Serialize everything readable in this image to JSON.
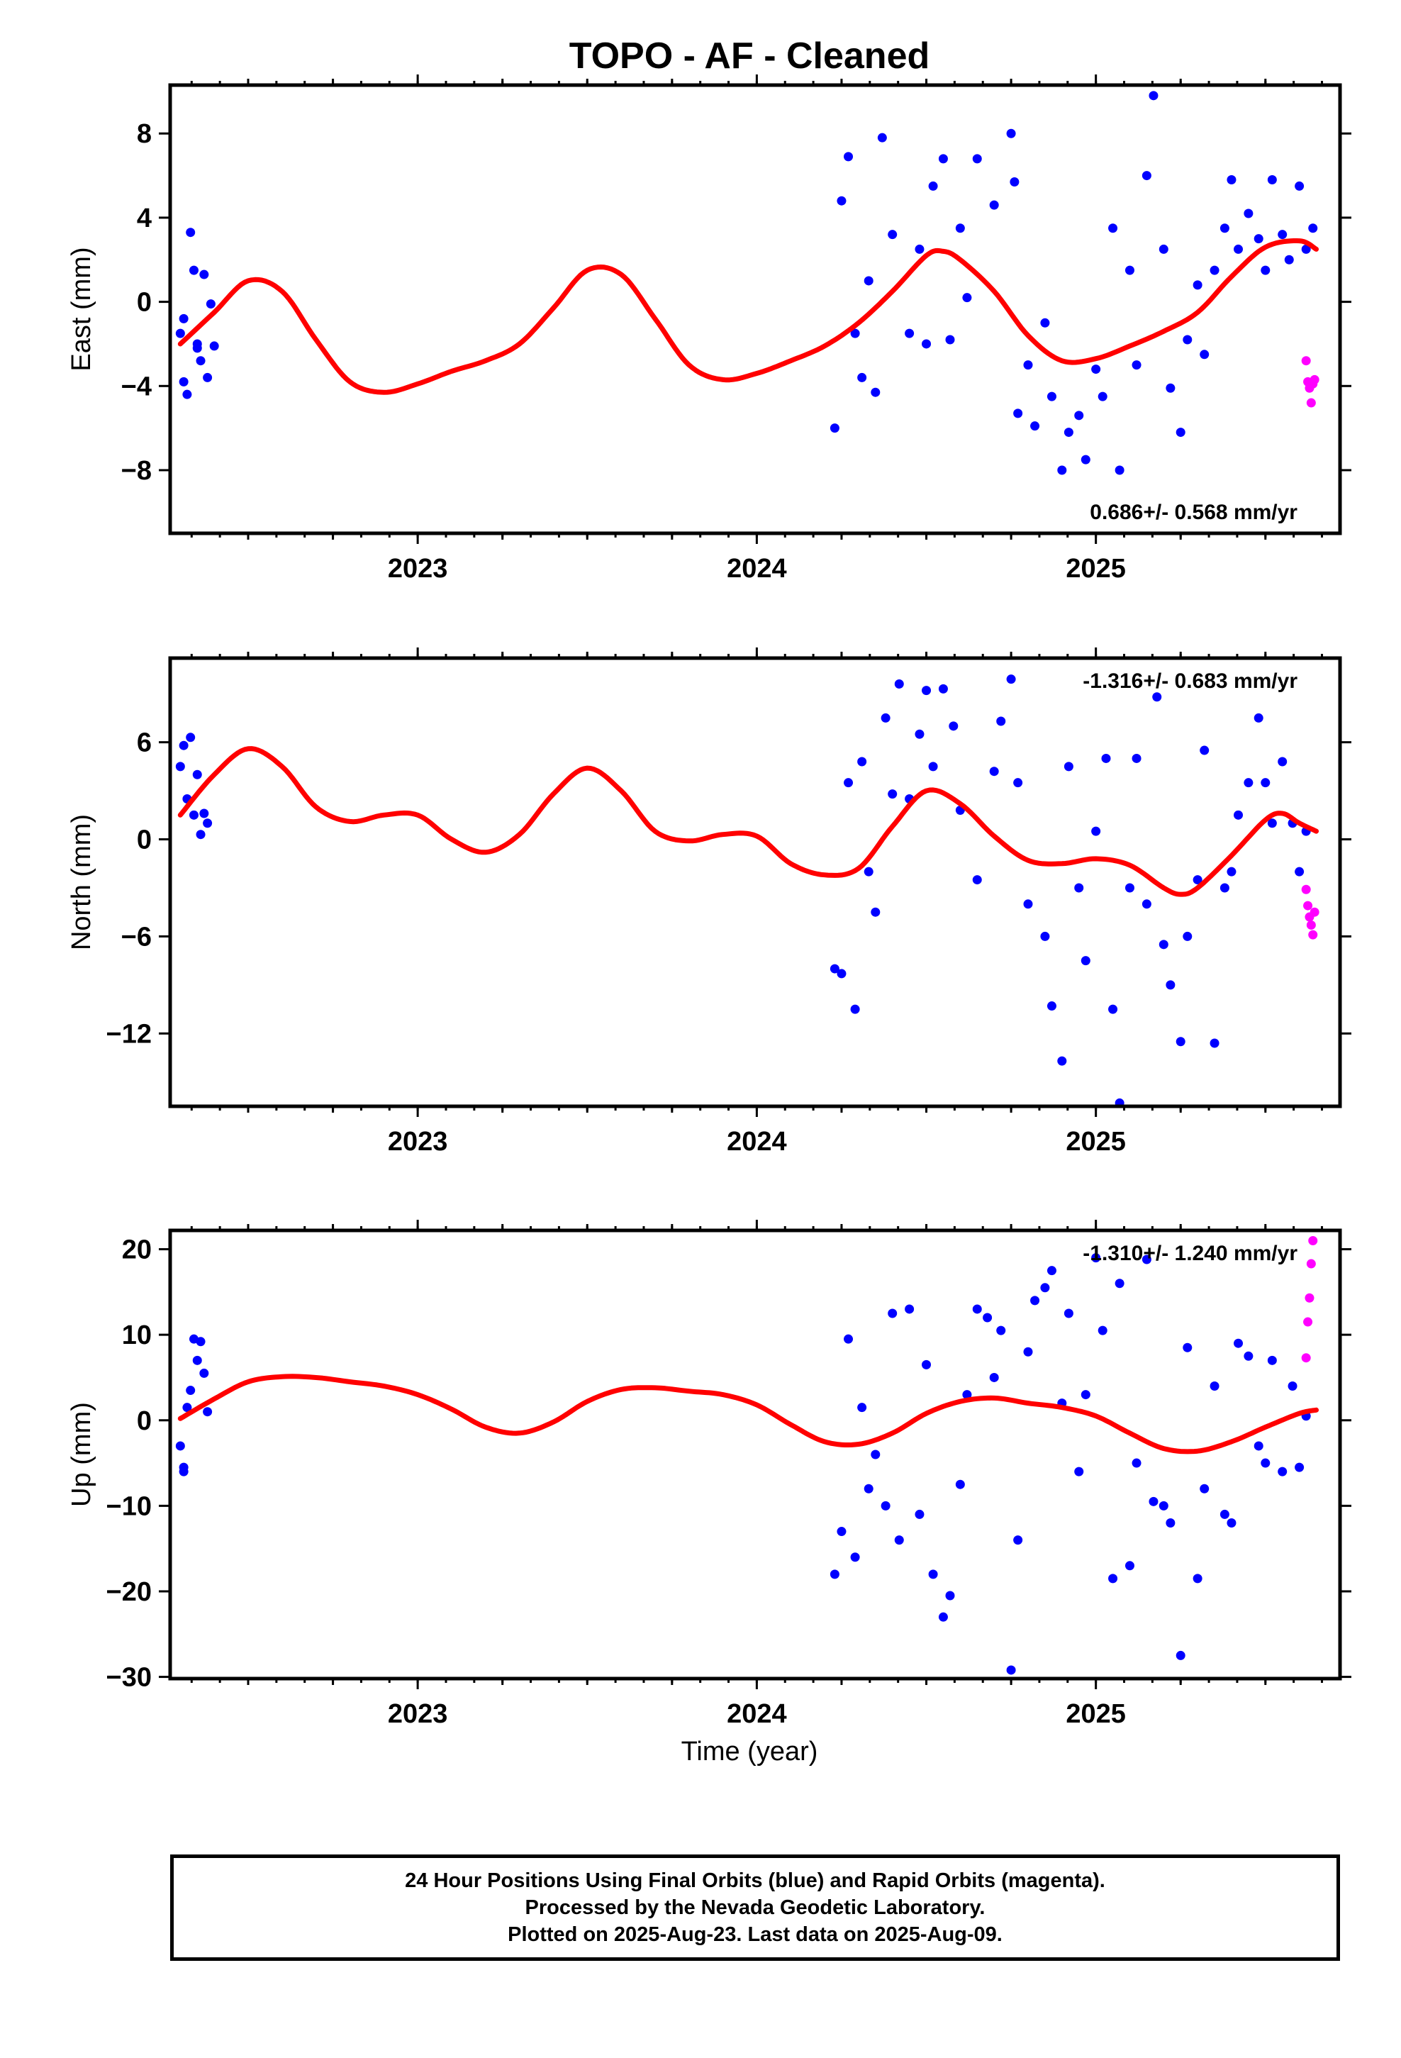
{
  "title": "TOPO  - AF - Cleaned",
  "xlabel": "Time (year)",
  "colors": {
    "final": "#0000ff",
    "rapid": "#ff00ff",
    "model": "#ff0000",
    "frame": "#000000"
  },
  "caption": {
    "line1": "24 Hour Positions Using Final Orbits (blue) and Rapid Orbits (magenta).",
    "line2": "Processed by the Nevada Geodetic Laboratory.",
    "line3": "Plotted on 2025-Aug-23. Last data on 2025-Aug-09."
  },
  "chart_data": [
    {
      "type": "scatter",
      "ylabel": "East (mm)",
      "xlim": [
        2022.27,
        2025.72
      ],
      "ylim": [
        -11,
        10.3
      ],
      "xticks": [
        2023,
        2024,
        2025
      ],
      "yticks": [
        8,
        4,
        0,
        -4,
        -8
      ],
      "yticklabels": [
        "8",
        "4",
        "0",
        "−4",
        "−8"
      ],
      "rate_label": "0.686+/- 0.568 mm/yr",
      "rate_position": "bottom-right",
      "model_knots": [
        [
          2022.3,
          -2.0
        ],
        [
          2022.4,
          -0.5
        ],
        [
          2022.5,
          1.0
        ],
        [
          2022.6,
          0.5
        ],
        [
          2022.7,
          -1.8
        ],
        [
          2022.8,
          -3.8
        ],
        [
          2022.9,
          -4.3
        ],
        [
          2023.0,
          -3.9
        ],
        [
          2023.1,
          -3.3
        ],
        [
          2023.2,
          -2.8
        ],
        [
          2023.3,
          -2.0
        ],
        [
          2023.4,
          -0.3
        ],
        [
          2023.5,
          1.5
        ],
        [
          2023.6,
          1.3
        ],
        [
          2023.7,
          -0.8
        ],
        [
          2023.8,
          -3.0
        ],
        [
          2023.9,
          -3.7
        ],
        [
          2024.0,
          -3.4
        ],
        [
          2024.1,
          -2.8
        ],
        [
          2024.2,
          -2.1
        ],
        [
          2024.3,
          -1.0
        ],
        [
          2024.4,
          0.5
        ],
        [
          2024.5,
          2.2
        ],
        [
          2024.55,
          2.4
        ],
        [
          2024.6,
          2.0
        ],
        [
          2024.7,
          0.5
        ],
        [
          2024.8,
          -1.6
        ],
        [
          2024.9,
          -2.8
        ],
        [
          2025.0,
          -2.7
        ],
        [
          2025.1,
          -2.1
        ],
        [
          2025.2,
          -1.4
        ],
        [
          2025.3,
          -0.5
        ],
        [
          2025.4,
          1.2
        ],
        [
          2025.5,
          2.6
        ],
        [
          2025.6,
          2.9
        ],
        [
          2025.65,
          2.5
        ]
      ],
      "final_points": [
        [
          2022.3,
          -1.5
        ],
        [
          2022.31,
          -3.8
        ],
        [
          2022.32,
          -4.4
        ],
        [
          2022.33,
          3.3
        ],
        [
          2022.34,
          1.5
        ],
        [
          2022.35,
          -2.2
        ],
        [
          2022.36,
          -2.8
        ],
        [
          2022.37,
          1.3
        ],
        [
          2022.38,
          -3.6
        ],
        [
          2022.39,
          -0.1
        ],
        [
          2022.4,
          -2.1
        ],
        [
          2022.31,
          -0.8
        ],
        [
          2022.35,
          -2.0
        ],
        [
          2024.23,
          -6.0
        ],
        [
          2024.25,
          4.8
        ],
        [
          2024.27,
          6.9
        ],
        [
          2024.29,
          -1.5
        ],
        [
          2024.31,
          -3.6
        ],
        [
          2024.33,
          1.0
        ],
        [
          2024.35,
          -4.3
        ],
        [
          2024.37,
          7.8
        ],
        [
          2024.4,
          3.2
        ],
        [
          2024.45,
          -1.5
        ],
        [
          2024.48,
          2.5
        ],
        [
          2024.5,
          -2.0
        ],
        [
          2024.52,
          5.5
        ],
        [
          2024.55,
          6.8
        ],
        [
          2024.57,
          -1.8
        ],
        [
          2024.6,
          3.5
        ],
        [
          2024.62,
          0.2
        ],
        [
          2024.65,
          6.8
        ],
        [
          2024.7,
          4.6
        ],
        [
          2024.75,
          8.0
        ],
        [
          2024.76,
          5.7
        ],
        [
          2024.77,
          -5.3
        ],
        [
          2024.8,
          -3.0
        ],
        [
          2024.82,
          -5.9
        ],
        [
          2024.85,
          -1.0
        ],
        [
          2024.87,
          -4.5
        ],
        [
          2024.9,
          -8.0
        ],
        [
          2024.92,
          -6.2
        ],
        [
          2024.95,
          -5.4
        ],
        [
          2024.97,
          -7.5
        ],
        [
          2025.0,
          -3.2
        ],
        [
          2025.02,
          -4.5
        ],
        [
          2025.05,
          3.5
        ],
        [
          2025.07,
          -8.0
        ],
        [
          2025.1,
          1.5
        ],
        [
          2025.12,
          -3.0
        ],
        [
          2025.15,
          6.0
        ],
        [
          2025.17,
          9.8
        ],
        [
          2025.2,
          2.5
        ],
        [
          2025.22,
          -4.1
        ],
        [
          2025.25,
          -6.2
        ],
        [
          2025.27,
          -1.8
        ],
        [
          2025.3,
          0.8
        ],
        [
          2025.32,
          -2.5
        ],
        [
          2025.35,
          1.5
        ],
        [
          2025.38,
          3.5
        ],
        [
          2025.4,
          5.8
        ],
        [
          2025.42,
          2.5
        ],
        [
          2025.45,
          4.2
        ],
        [
          2025.48,
          3.0
        ],
        [
          2025.5,
          1.5
        ],
        [
          2025.52,
          5.8
        ],
        [
          2025.55,
          3.2
        ],
        [
          2025.57,
          2.0
        ],
        [
          2025.6,
          5.5
        ],
        [
          2025.62,
          2.5
        ],
        [
          2025.64,
          3.5
        ]
      ],
      "rapid_points": [
        [
          2025.62,
          -2.8
        ],
        [
          2025.625,
          -3.8
        ],
        [
          2025.63,
          -4.1
        ],
        [
          2025.635,
          -4.8
        ],
        [
          2025.64,
          -3.9
        ],
        [
          2025.645,
          -3.7
        ]
      ]
    },
    {
      "type": "scatter",
      "ylabel": "North (mm)",
      "xlim": [
        2022.27,
        2025.72
      ],
      "ylim": [
        -16.5,
        11.2
      ],
      "xticks": [
        2023,
        2024,
        2025
      ],
      "yticks": [
        6,
        0,
        -6,
        -12
      ],
      "yticklabels": [
        "6",
        "0",
        "−6",
        "−12"
      ],
      "rate_label": "-1.316+/- 0.683 mm/yr",
      "rate_position": "top-right",
      "model_knots": [
        [
          2022.3,
          1.5
        ],
        [
          2022.4,
          4.0
        ],
        [
          2022.5,
          5.6
        ],
        [
          2022.6,
          4.5
        ],
        [
          2022.7,
          2.0
        ],
        [
          2022.8,
          1.1
        ],
        [
          2022.9,
          1.5
        ],
        [
          2023.0,
          1.5
        ],
        [
          2023.1,
          0.0
        ],
        [
          2023.2,
          -0.8
        ],
        [
          2023.3,
          0.3
        ],
        [
          2023.4,
          2.8
        ],
        [
          2023.5,
          4.4
        ],
        [
          2023.6,
          3.0
        ],
        [
          2023.7,
          0.5
        ],
        [
          2023.8,
          -0.1
        ],
        [
          2023.9,
          0.3
        ],
        [
          2024.0,
          0.2
        ],
        [
          2024.1,
          -1.5
        ],
        [
          2024.2,
          -2.2
        ],
        [
          2024.3,
          -1.8
        ],
        [
          2024.4,
          0.8
        ],
        [
          2024.5,
          3.0
        ],
        [
          2024.6,
          2.2
        ],
        [
          2024.7,
          0.2
        ],
        [
          2024.8,
          -1.3
        ],
        [
          2024.9,
          -1.5
        ],
        [
          2025.0,
          -1.2
        ],
        [
          2025.1,
          -1.6
        ],
        [
          2025.2,
          -3.0
        ],
        [
          2025.25,
          -3.4
        ],
        [
          2025.3,
          -3.0
        ],
        [
          2025.4,
          -1.0
        ],
        [
          2025.5,
          1.2
        ],
        [
          2025.55,
          1.6
        ],
        [
          2025.6,
          1.0
        ],
        [
          2025.65,
          0.5
        ]
      ],
      "final_points": [
        [
          2022.3,
          4.5
        ],
        [
          2022.31,
          5.8
        ],
        [
          2022.32,
          2.5
        ],
        [
          2022.33,
          6.3
        ],
        [
          2022.34,
          1.5
        ],
        [
          2022.35,
          4.0
        ],
        [
          2022.36,
          0.3
        ],
        [
          2022.37,
          1.6
        ],
        [
          2022.38,
          1.0
        ],
        [
          2024.23,
          -8.0
        ],
        [
          2024.25,
          -8.3
        ],
        [
          2024.27,
          3.5
        ],
        [
          2024.29,
          -10.5
        ],
        [
          2024.31,
          4.8
        ],
        [
          2024.33,
          -2.0
        ],
        [
          2024.35,
          -4.5
        ],
        [
          2024.38,
          7.5
        ],
        [
          2024.4,
          2.8
        ],
        [
          2024.42,
          9.6
        ],
        [
          2024.45,
          2.5
        ],
        [
          2024.48,
          6.5
        ],
        [
          2024.5,
          9.2
        ],
        [
          2024.52,
          4.5
        ],
        [
          2024.55,
          9.3
        ],
        [
          2024.58,
          7.0
        ],
        [
          2024.6,
          1.8
        ],
        [
          2024.65,
          -2.5
        ],
        [
          2024.7,
          4.2
        ],
        [
          2024.72,
          7.3
        ],
        [
          2024.75,
          9.9
        ],
        [
          2024.77,
          3.5
        ],
        [
          2024.8,
          -4.0
        ],
        [
          2024.85,
          -6.0
        ],
        [
          2024.87,
          -10.3
        ],
        [
          2024.9,
          -13.7
        ],
        [
          2024.92,
          4.5
        ],
        [
          2024.95,
          -3.0
        ],
        [
          2024.97,
          -7.5
        ],
        [
          2025.0,
          0.5
        ],
        [
          2025.03,
          5.0
        ],
        [
          2025.05,
          -10.5
        ],
        [
          2025.07,
          -16.3
        ],
        [
          2025.1,
          -3.0
        ],
        [
          2025.12,
          5.0
        ],
        [
          2025.15,
          -4.0
        ],
        [
          2025.18,
          8.8
        ],
        [
          2025.2,
          -6.5
        ],
        [
          2025.22,
          -9.0
        ],
        [
          2025.25,
          -12.5
        ],
        [
          2025.27,
          -6.0
        ],
        [
          2025.3,
          -2.5
        ],
        [
          2025.32,
          5.5
        ],
        [
          2025.35,
          -12.6
        ],
        [
          2025.38,
          -3.0
        ],
        [
          2025.4,
          -2.0
        ],
        [
          2025.42,
          1.5
        ],
        [
          2025.45,
          3.5
        ],
        [
          2025.48,
          7.5
        ],
        [
          2025.5,
          3.5
        ],
        [
          2025.52,
          1.0
        ],
        [
          2025.55,
          4.8
        ],
        [
          2025.58,
          1.0
        ],
        [
          2025.6,
          -2.0
        ],
        [
          2025.62,
          0.5
        ]
      ],
      "rapid_points": [
        [
          2025.62,
          -3.1
        ],
        [
          2025.625,
          -4.1
        ],
        [
          2025.63,
          -4.8
        ],
        [
          2025.635,
          -5.3
        ],
        [
          2025.64,
          -5.9
        ],
        [
          2025.645,
          -4.5
        ]
      ]
    },
    {
      "type": "scatter",
      "ylabel": "Up (mm)",
      "xlim": [
        2022.27,
        2025.72
      ],
      "ylim": [
        -30.2,
        22.2
      ],
      "xticks": [
        2023,
        2024,
        2025
      ],
      "yticks": [
        20,
        10,
        0,
        -10,
        -20,
        -30
      ],
      "yticklabels": [
        "20",
        "10",
        "0",
        "−10",
        "−20",
        "−30"
      ],
      "rate_label": "-1.310+/- 1.240 mm/yr",
      "rate_position": "top-right",
      "model_knots": [
        [
          2022.3,
          0.2
        ],
        [
          2022.4,
          2.5
        ],
        [
          2022.5,
          4.5
        ],
        [
          2022.6,
          5.1
        ],
        [
          2022.7,
          5.0
        ],
        [
          2022.8,
          4.5
        ],
        [
          2022.9,
          4.0
        ],
        [
          2023.0,
          3.0
        ],
        [
          2023.1,
          1.3
        ],
        [
          2023.2,
          -0.8
        ],
        [
          2023.3,
          -1.5
        ],
        [
          2023.4,
          -0.2
        ],
        [
          2023.5,
          2.2
        ],
        [
          2023.6,
          3.6
        ],
        [
          2023.7,
          3.8
        ],
        [
          2023.8,
          3.4
        ],
        [
          2023.9,
          3.0
        ],
        [
          2024.0,
          1.8
        ],
        [
          2024.1,
          -0.5
        ],
        [
          2024.2,
          -2.5
        ],
        [
          2024.3,
          -2.8
        ],
        [
          2024.4,
          -1.5
        ],
        [
          2024.5,
          0.8
        ],
        [
          2024.6,
          2.2
        ],
        [
          2024.7,
          2.6
        ],
        [
          2024.8,
          2.0
        ],
        [
          2024.9,
          1.5
        ],
        [
          2025.0,
          0.5
        ],
        [
          2025.1,
          -1.5
        ],
        [
          2025.2,
          -3.3
        ],
        [
          2025.3,
          -3.6
        ],
        [
          2025.4,
          -2.5
        ],
        [
          2025.5,
          -0.8
        ],
        [
          2025.6,
          0.8
        ],
        [
          2025.65,
          1.2
        ]
      ],
      "final_points": [
        [
          2022.3,
          -3.0
        ],
        [
          2022.31,
          -6.0
        ],
        [
          2022.32,
          1.5
        ],
        [
          2022.33,
          3.5
        ],
        [
          2022.34,
          9.5
        ],
        [
          2022.35,
          7.0
        ],
        [
          2022.36,
          9.2
        ],
        [
          2022.37,
          5.5
        ],
        [
          2022.38,
          1.0
        ],
        [
          2022.31,
          -5.5
        ],
        [
          2024.23,
          -18.0
        ],
        [
          2024.25,
          -13.0
        ],
        [
          2024.27,
          9.5
        ],
        [
          2024.29,
          -16.0
        ],
        [
          2024.31,
          1.5
        ],
        [
          2024.33,
          -8.0
        ],
        [
          2024.35,
          -4.0
        ],
        [
          2024.38,
          -10.0
        ],
        [
          2024.4,
          12.5
        ],
        [
          2024.42,
          -14.0
        ],
        [
          2024.45,
          13.0
        ],
        [
          2024.48,
          -11.0
        ],
        [
          2024.5,
          6.5
        ],
        [
          2024.52,
          -18.0
        ],
        [
          2024.55,
          -23.0
        ],
        [
          2024.57,
          -20.5
        ],
        [
          2024.6,
          -7.5
        ],
        [
          2024.62,
          3.0
        ],
        [
          2024.65,
          13.0
        ],
        [
          2024.68,
          12.0
        ],
        [
          2024.7,
          5.0
        ],
        [
          2024.72,
          10.5
        ],
        [
          2024.75,
          -29.2
        ],
        [
          2024.77,
          -14.0
        ],
        [
          2024.8,
          8.0
        ],
        [
          2024.82,
          14.0
        ],
        [
          2024.85,
          15.5
        ],
        [
          2024.87,
          17.5
        ],
        [
          2024.9,
          2.0
        ],
        [
          2024.92,
          12.5
        ],
        [
          2024.95,
          -6.0
        ],
        [
          2024.97,
          3.0
        ],
        [
          2025.0,
          19.0
        ],
        [
          2025.02,
          10.5
        ],
        [
          2025.05,
          -18.5
        ],
        [
          2025.07,
          16.0
        ],
        [
          2025.1,
          -17.0
        ],
        [
          2025.12,
          -5.0
        ],
        [
          2025.15,
          18.8
        ],
        [
          2025.17,
          -9.5
        ],
        [
          2025.2,
          -10.0
        ],
        [
          2025.22,
          -12.0
        ],
        [
          2025.25,
          -27.5
        ],
        [
          2025.27,
          8.5
        ],
        [
          2025.3,
          -18.5
        ],
        [
          2025.32,
          -8.0
        ],
        [
          2025.35,
          4.0
        ],
        [
          2025.38,
          -11.0
        ],
        [
          2025.4,
          -12.0
        ],
        [
          2025.42,
          9.0
        ],
        [
          2025.45,
          7.5
        ],
        [
          2025.48,
          -3.0
        ],
        [
          2025.5,
          -5.0
        ],
        [
          2025.52,
          7.0
        ],
        [
          2025.55,
          -6.0
        ],
        [
          2025.58,
          4.0
        ],
        [
          2025.6,
          -5.5
        ],
        [
          2025.62,
          0.5
        ]
      ],
      "rapid_points": [
        [
          2025.62,
          7.3
        ],
        [
          2025.625,
          11.5
        ],
        [
          2025.63,
          14.3
        ],
        [
          2025.635,
          18.3
        ],
        [
          2025.64,
          21.0
        ]
      ]
    }
  ]
}
